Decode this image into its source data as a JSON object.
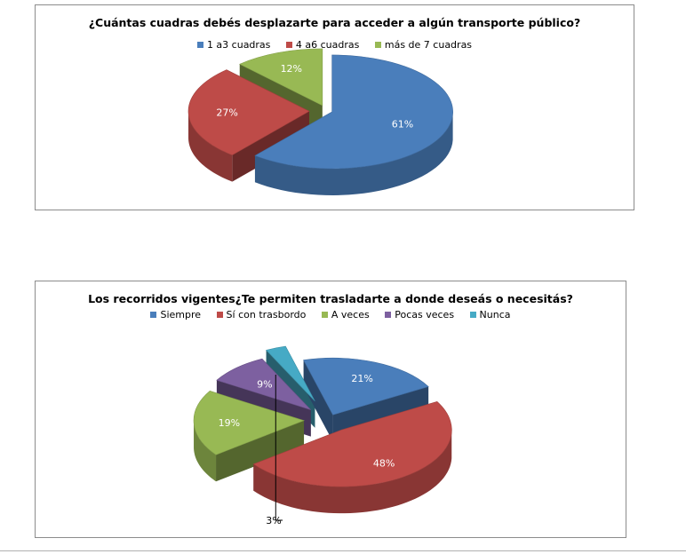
{
  "chart_data": [
    {
      "type": "pie",
      "title": "¿Cuántas cuadras debés desplazarte para acceder a algún transporte público?",
      "categories": [
        "1 a3 cuadras",
        "4 a6 cuadras",
        "más de 7 cuadras"
      ],
      "values": [
        61,
        27,
        12
      ],
      "labels": [
        "61%",
        "27%",
        "12%"
      ],
      "colors": [
        "#4a7ebb",
        "#be4b48",
        "#98b954"
      ],
      "legend": "top"
    },
    {
      "type": "pie",
      "title": "Los recorridos vigentes¿Te permiten trasladarte a donde deseás o necesitás?",
      "categories": [
        "Siempre",
        "Sí con trasbordo",
        "A veces",
        "Pocas veces",
        "Nunca"
      ],
      "values": [
        21,
        48,
        19,
        9,
        3
      ],
      "labels": [
        "21%",
        "48%",
        "19%",
        "9%",
        "3%"
      ],
      "colors": [
        "#4a7ebb",
        "#be4b48",
        "#98b954",
        "#7d60a0",
        "#46aac5"
      ],
      "legend": "top"
    }
  ]
}
